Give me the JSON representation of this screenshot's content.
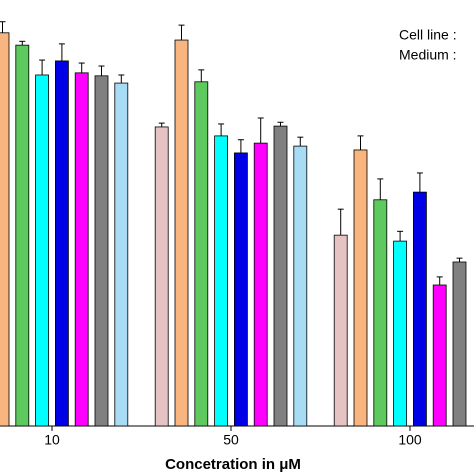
{
  "chart_data": {
    "type": "bar",
    "x_label": "Concetration in μM",
    "annotations": [
      "Cell line :",
      "Medium :"
    ],
    "categories": [
      "10",
      "50",
      "100"
    ],
    "ylim": [
      0,
      100
    ],
    "series": [
      {
        "color": "#e6c3c3",
        "values": [
          null,
          70.2,
          44.8
        ],
        "errors": [
          null,
          0.9,
          6.1
        ]
      },
      {
        "color": "#f8b57f",
        "values": [
          92.3,
          90.6,
          64.8
        ],
        "errors": [
          2.6,
          3.5,
          3.3
        ]
      },
      {
        "color": "#5ec95e",
        "values": [
          89.4,
          80.8,
          53.1
        ],
        "errors": [
          0.9,
          2.8,
          4.9
        ]
      },
      {
        "color": "#00ffff",
        "values": [
          82.4,
          68.1,
          43.4
        ],
        "errors": [
          3.5,
          2.8,
          2.3
        ]
      },
      {
        "color": "#0000e6",
        "values": [
          85.7,
          64.1,
          54.9
        ],
        "errors": [
          4.0,
          3.1,
          4.5
        ]
      },
      {
        "color": "#ff00ff",
        "values": [
          82.9,
          66.4,
          33.1
        ],
        "errors": [
          2.3,
          5.9,
          1.9
        ]
      },
      {
        "color": "#808080",
        "values": [
          82.2,
          70.4,
          38.5
        ],
        "errors": [
          2.3,
          0.9,
          0.9
        ]
      },
      {
        "color": "#a8dcf4",
        "values": [
          80.5,
          65.7,
          null
        ],
        "errors": [
          1.9,
          2.1,
          null
        ]
      }
    ]
  }
}
